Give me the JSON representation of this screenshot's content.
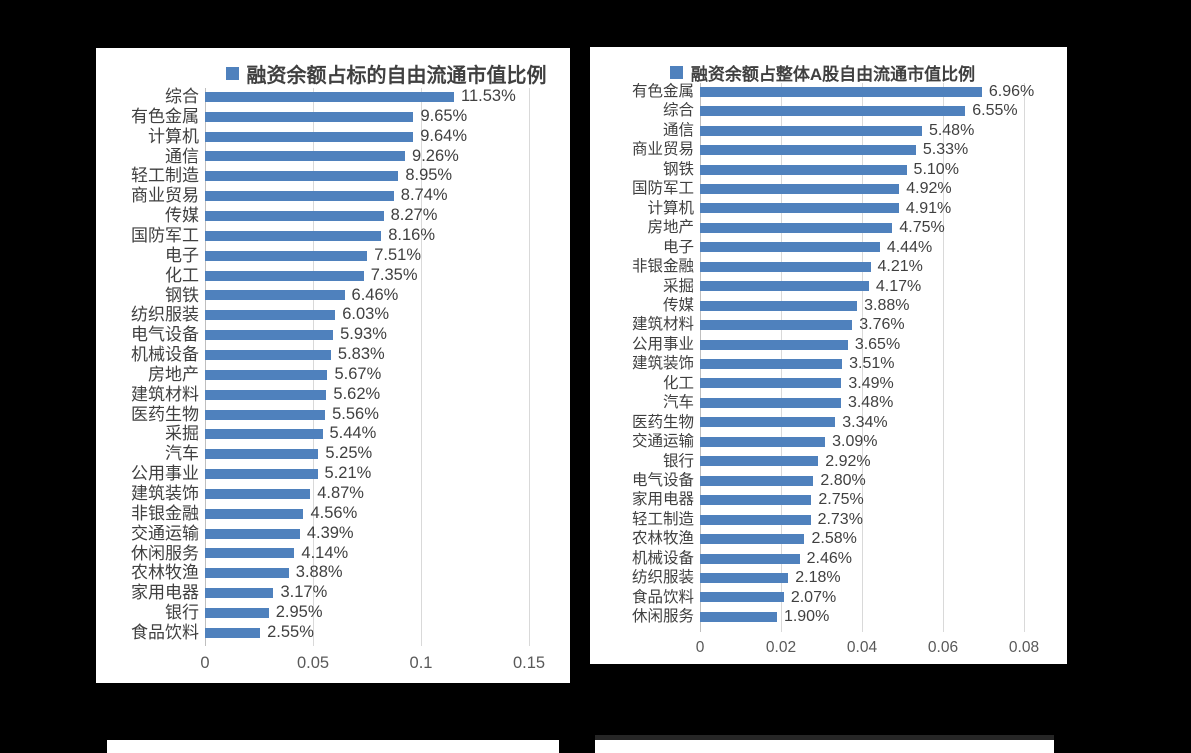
{
  "colors": {
    "page_background": "#000000",
    "panel_background": "#ffffff",
    "bar": "#4F81BD",
    "gridline": "#d9d9d9",
    "zero_axis": "#bfbfbf",
    "category_text": "#404040",
    "value_text": "#404040",
    "tick_text": "#595959",
    "title_text": "#404040",
    "partial_panel_top_border": "#262626"
  },
  "chart_data": [
    {
      "type": "bar",
      "orientation": "horizontal",
      "title": "融资余额占标的自由流通市值比例",
      "legend_position": "top",
      "grid": true,
      "categories": [
        "综合",
        "有色金属",
        "计算机",
        "通信",
        "轻工制造",
        "商业贸易",
        "传媒",
        "国防军工",
        "电子",
        "化工",
        "钢铁",
        "纺织服装",
        "电气设备",
        "机械设备",
        "房地产",
        "建筑材料",
        "医药生物",
        "采掘",
        "汽车",
        "公用事业",
        "建筑装饰",
        "非银金融",
        "交通运输",
        "休闲服务",
        "农林牧渔",
        "家用电器",
        "银行",
        "食品饮料"
      ],
      "values": [
        0.1153,
        0.0965,
        0.0964,
        0.0926,
        0.0895,
        0.0874,
        0.0827,
        0.0816,
        0.0751,
        0.0735,
        0.0646,
        0.0603,
        0.0593,
        0.0583,
        0.0567,
        0.0562,
        0.0556,
        0.0544,
        0.0525,
        0.0521,
        0.0487,
        0.0456,
        0.0439,
        0.0414,
        0.0388,
        0.0317,
        0.0295,
        0.0255
      ],
      "value_labels": [
        "11.53%",
        "9.65%",
        "9.64%",
        "9.26%",
        "8.95%",
        "8.74%",
        "8.27%",
        "8.16%",
        "7.51%",
        "7.35%",
        "6.46%",
        "6.03%",
        "5.93%",
        "5.83%",
        "5.67%",
        "5.62%",
        "5.56%",
        "5.44%",
        "5.25%",
        "5.21%",
        "4.87%",
        "4.56%",
        "4.39%",
        "4.14%",
        "3.88%",
        "3.17%",
        "2.95%",
        "2.55%"
      ],
      "x_ticks": [
        "0",
        "0.05",
        "0.1",
        "0.15"
      ],
      "xlim": [
        0,
        0.15
      ]
    },
    {
      "type": "bar",
      "orientation": "horizontal",
      "title": "融资余额占整体A股自由流通市值比例",
      "legend_position": "top",
      "grid": true,
      "categories": [
        "有色金属",
        "综合",
        "通信",
        "商业贸易",
        "钢铁",
        "国防军工",
        "计算机",
        "房地产",
        "电子",
        "非银金融",
        "采掘",
        "传媒",
        "建筑材料",
        "公用事业",
        "建筑装饰",
        "化工",
        "汽车",
        "医药生物",
        "交通运输",
        "银行",
        "电气设备",
        "家用电器",
        "轻工制造",
        "农林牧渔",
        "机械设备",
        "纺织服装",
        "食品饮料",
        "休闲服务"
      ],
      "values": [
        0.0696,
        0.0655,
        0.0548,
        0.0533,
        0.051,
        0.0492,
        0.0491,
        0.0475,
        0.0444,
        0.0421,
        0.0417,
        0.0388,
        0.0376,
        0.0365,
        0.0351,
        0.0349,
        0.0348,
        0.0334,
        0.0309,
        0.0292,
        0.028,
        0.0275,
        0.0273,
        0.0258,
        0.0246,
        0.0218,
        0.0207,
        0.019
      ],
      "value_labels": [
        "6.96%",
        "6.55%",
        "5.48%",
        "5.33%",
        "5.10%",
        "4.92%",
        "4.91%",
        "4.75%",
        "4.44%",
        "4.21%",
        "4.17%",
        "3.88%",
        "3.76%",
        "3.65%",
        "3.51%",
        "3.49%",
        "3.48%",
        "3.34%",
        "3.09%",
        "2.92%",
        "2.80%",
        "2.75%",
        "2.73%",
        "2.58%",
        "2.46%",
        "2.18%",
        "2.07%",
        "1.90%"
      ],
      "x_ticks": [
        "0",
        "0.02",
        "0.04",
        "0.06",
        "0.08"
      ],
      "xlim": [
        0,
        0.08
      ]
    }
  ]
}
